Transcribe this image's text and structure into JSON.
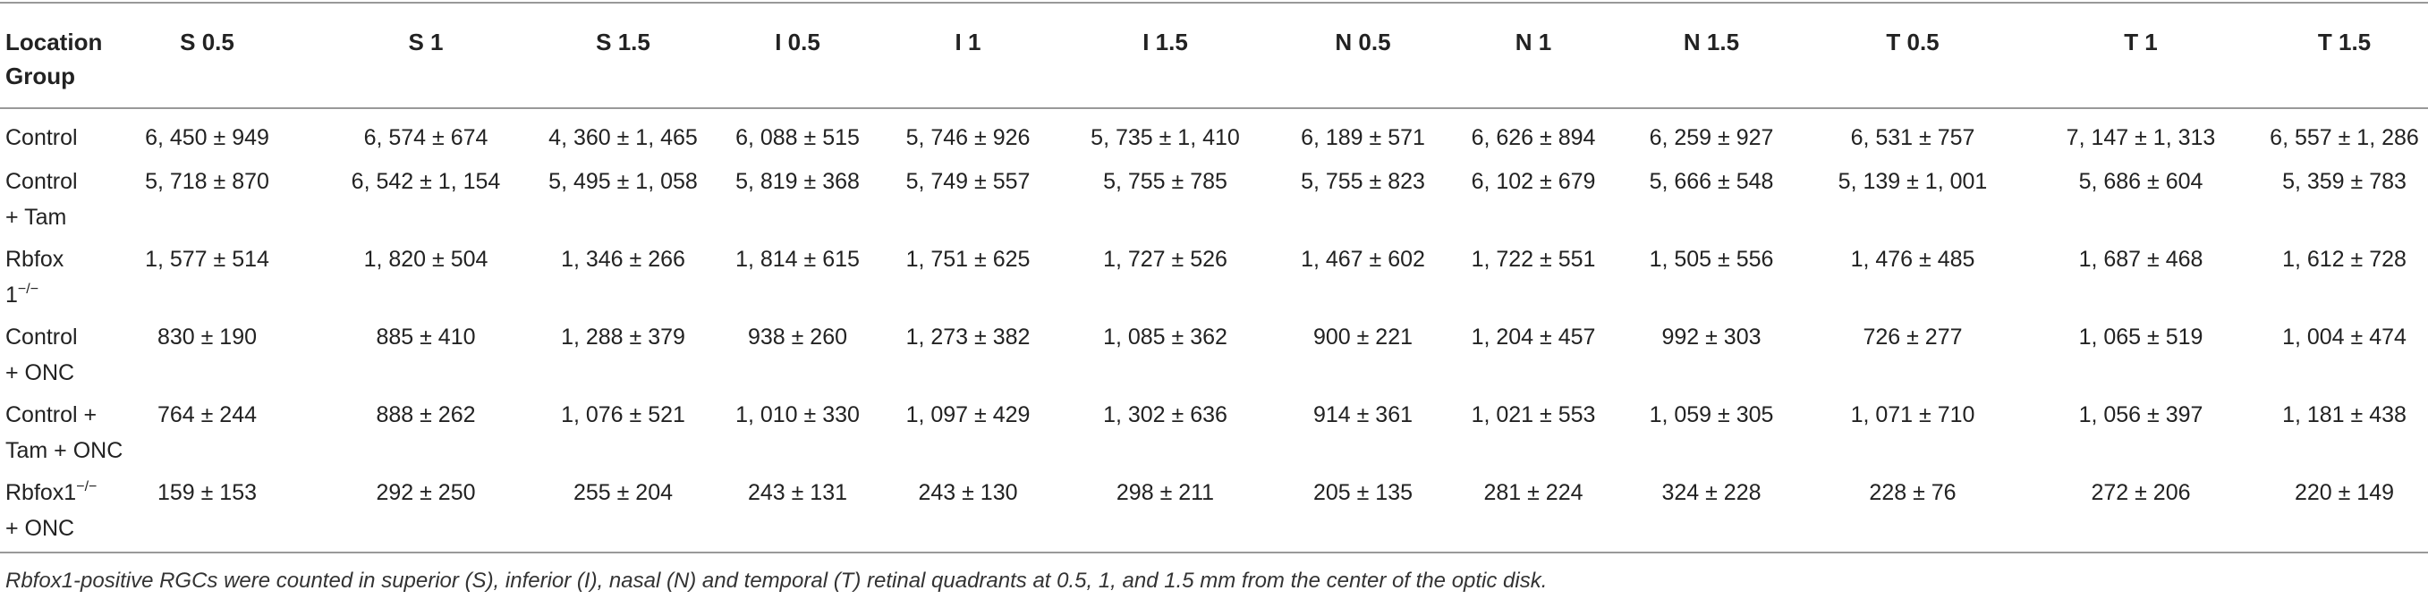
{
  "table": {
    "columns": [
      "Location Group",
      "S 0.5",
      "S 1",
      "S 1.5",
      "I 0.5",
      "I 1",
      "I 1.5",
      "N 0.5",
      "N 1",
      "N 1.5",
      "T 0.5",
      "T 1",
      "T 1.5"
    ],
    "rows": [
      {
        "label": [
          [
            {
              "text": "Control"
            }
          ]
        ],
        "values": [
          "6, 450 ± 949",
          "6, 574 ± 674",
          "4, 360 ± 1, 465",
          "6, 088 ± 515",
          "5, 746 ± 926",
          "5, 735 ± 1, 410",
          "6, 189 ± 571",
          "6, 626 ± 894",
          "6, 259 ± 927",
          "6, 531 ± 757",
          "7, 147 ± 1, 313",
          "6, 557 ± 1, 286"
        ]
      },
      {
        "label": [
          [
            {
              "text": "Control"
            }
          ],
          [
            {
              "text": "+ Tam"
            }
          ]
        ],
        "values": [
          "5, 718 ± 870",
          "6, 542 ± 1, 154",
          "5, 495 ± 1, 058",
          "5, 819 ± 368",
          "5, 749 ± 557",
          "5, 755 ± 785",
          "5, 755 ± 823",
          "6, 102 ± 679",
          "5, 666 ± 548",
          "5, 139 ± 1, 001",
          "5, 686 ± 604",
          "5, 359 ± 783"
        ]
      },
      {
        "label": [
          [
            {
              "text": "Rbfox"
            }
          ],
          [
            {
              "text": "1"
            },
            {
              "text": "−/−",
              "sup": true
            }
          ]
        ],
        "values": [
          "1, 577 ± 514",
          "1, 820 ± 504",
          "1, 346 ± 266",
          "1, 814 ± 615",
          "1, 751 ± 625",
          "1, 727 ± 526",
          "1, 467 ± 602",
          "1, 722 ± 551",
          "1, 505 ± 556",
          "1, 476 ± 485",
          "1, 687 ± 468",
          "1, 612 ± 728"
        ]
      },
      {
        "label": [
          [
            {
              "text": "Control"
            }
          ],
          [
            {
              "text": "+ ONC"
            }
          ]
        ],
        "values": [
          "830 ± 190",
          "885 ± 410",
          "1, 288 ± 379",
          "938 ± 260",
          "1, 273 ± 382",
          "1, 085 ± 362",
          "900 ± 221",
          "1, 204 ± 457",
          "992 ± 303",
          "726 ± 277",
          "1, 065 ± 519",
          "1, 004 ± 474"
        ]
      },
      {
        "label": [
          [
            {
              "text": "Control +"
            }
          ],
          [
            {
              "text": "Tam + ONC"
            }
          ]
        ],
        "values": [
          "764 ± 244",
          "888 ± 262",
          "1, 076 ± 521",
          "1, 010 ± 330",
          "1, 097 ± 429",
          "1, 302 ± 636",
          "914 ± 361",
          "1, 021 ± 553",
          "1, 059 ± 305",
          "1, 071 ± 710",
          "1, 056 ± 397",
          "1, 181 ± 438"
        ]
      },
      {
        "label": [
          [
            {
              "text": "Rbfox1"
            },
            {
              "text": "−/−",
              "sup": true
            }
          ],
          [
            {
              "text": "+ ONC"
            }
          ]
        ],
        "values": [
          "159 ± 153",
          "292 ± 250",
          "255 ± 204",
          "243 ± 131",
          "243 ± 130",
          "298 ± 211",
          "205 ± 135",
          "281 ± 224",
          "324 ± 228",
          "228 ± 76",
          "272 ± 206",
          "220 ± 149"
        ]
      }
    ],
    "footnote": "Rbfox1-positive RGCs were counted in superior (S), inferior (I), nasal (N) and temporal (T) retinal quadrants at 0.5, 1, and 1.5 mm from the center of the optic disk."
  }
}
